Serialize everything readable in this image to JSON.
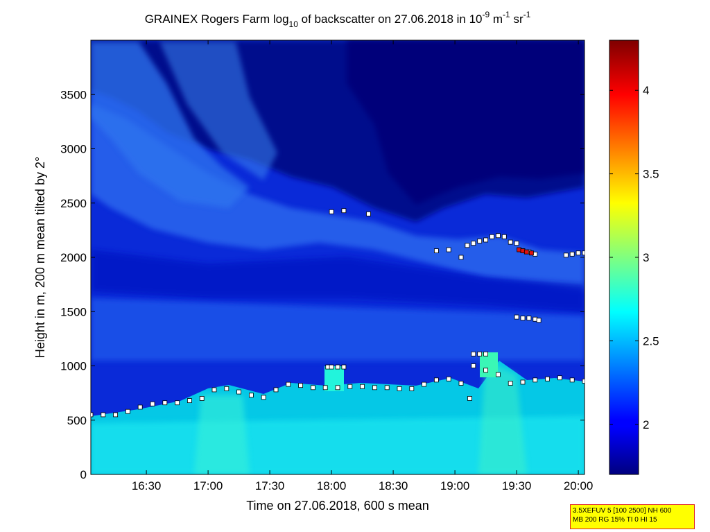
{
  "chart_data": {
    "type": "heatmap",
    "title": {
      "part1": "GRAINEX Rogers Farm log",
      "sub": "10",
      "part2": " of backscatter on 27.06.2018 in 10",
      "sup1": "-9",
      "part3": " m",
      "sup2": "-1",
      "part4": " sr",
      "sup3": "-1"
    },
    "xlabel": "Time on 27.06.2018, 600 s mean",
    "ylabel": "Height in m, 200 m mean tilted by 2°",
    "x_unit": "hours",
    "xlim": [
      16.05,
      20.05
    ],
    "ylim": [
      0,
      4000
    ],
    "x_ticks": [
      {
        "v": 16.5,
        "label": "16:30"
      },
      {
        "v": 17.0,
        "label": "17:00"
      },
      {
        "v": 17.5,
        "label": "17:30"
      },
      {
        "v": 18.0,
        "label": "18:00"
      },
      {
        "v": 18.5,
        "label": "18:30"
      },
      {
        "v": 19.0,
        "label": "19:00"
      },
      {
        "v": 19.5,
        "label": "19:30"
      },
      {
        "v": 20.0,
        "label": "20:00"
      }
    ],
    "y_ticks": [
      0,
      500,
      1000,
      1500,
      2000,
      2500,
      3000,
      3500
    ],
    "colorbar": {
      "colormap": "jet",
      "range": [
        1.7,
        4.3
      ],
      "ticks": [
        2,
        2.5,
        3,
        3.5,
        4
      ]
    },
    "field_description": {
      "boundary_layer_level": 2.6,
      "free_troposphere_level": 2.1,
      "upper_layer_level": 1.8
    },
    "series": [
      {
        "marker": "white-square",
        "x": [
          16.05,
          16.15,
          16.25,
          16.35,
          16.45,
          16.55,
          16.65,
          16.75,
          16.85,
          16.95,
          17.05,
          17.15,
          17.25,
          17.35,
          17.45,
          17.55,
          17.65,
          17.75,
          17.85,
          17.95,
          18.05,
          18.15,
          18.25,
          18.35,
          18.45,
          18.55,
          18.65,
          18.75,
          18.85,
          18.95,
          19.05,
          19.15,
          19.25,
          19.35,
          19.45,
          19.55,
          19.65,
          19.75,
          19.85,
          19.95,
          20.05
        ],
        "y": [
          550,
          550,
          550,
          580,
          620,
          650,
          660,
          660,
          680,
          700,
          780,
          790,
          760,
          730,
          710,
          780,
          830,
          820,
          800,
          800,
          800,
          810,
          810,
          800,
          800,
          790,
          790,
          830,
          870,
          880,
          840,
          1000,
          960,
          920,
          840,
          850,
          870,
          880,
          890,
          870,
          860
        ]
      },
      {
        "marker": "white-square",
        "x": [
          17.97,
          18.0,
          18.05,
          18.1,
          19.15,
          19.2,
          19.25
        ],
        "y": [
          990,
          990,
          990,
          990,
          1110,
          1110,
          1110
        ]
      },
      {
        "marker": "white-square",
        "x": [
          18.0,
          18.1,
          18.3,
          18.85,
          18.95,
          19.05,
          19.1,
          19.15,
          19.2,
          19.25,
          19.3,
          19.35,
          19.4,
          19.45,
          19.5,
          19.55,
          19.6,
          19.65,
          19.9,
          19.95,
          20.0,
          20.05
        ],
        "y": [
          2420,
          2430,
          2400,
          2060,
          2070,
          2000,
          2110,
          2130,
          2150,
          2160,
          2190,
          2200,
          2190,
          2140,
          2130,
          2060,
          2050,
          2030,
          2020,
          2030,
          2040,
          2040
        ]
      },
      {
        "marker": "white-square",
        "x": [
          19.5,
          19.55,
          19.6,
          19.65,
          19.68,
          19.12
        ],
        "y": [
          1450,
          1440,
          1440,
          1430,
          1420,
          700
        ]
      },
      {
        "marker": "red-square",
        "x": [
          19.52,
          19.55,
          19.58,
          19.62
        ],
        "y": [
          2070,
          2060,
          2050,
          2040
        ]
      }
    ]
  },
  "info_box": {
    "line1": "3.5XEFUV 5 [100 2500] NH 600",
    "line2": "MB 200 RG 15% TI 0 HI 15"
  }
}
